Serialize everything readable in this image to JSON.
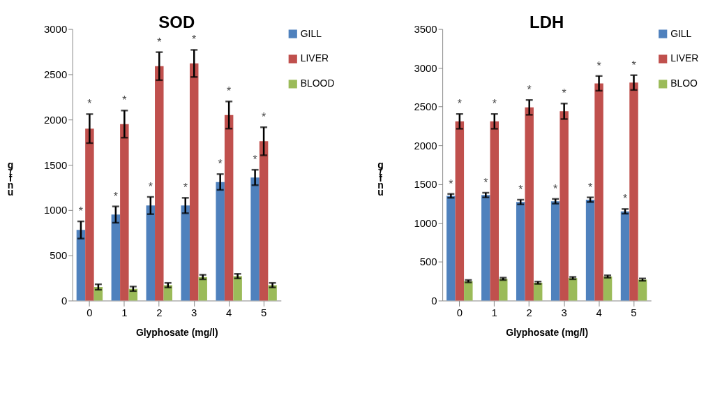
{
  "chart_data": [
    {
      "type": "bar",
      "title": "SOD",
      "xlabel": "Glyphosate (mg/l)",
      "ylabel": "g/fnu",
      "categories": [
        "0",
        "1",
        "2",
        "3",
        "4",
        "5"
      ],
      "series": [
        {
          "name": "GILL",
          "color": "#4f81bd",
          "values": [
            780,
            950,
            1050,
            1050,
            1310,
            1360
          ],
          "errors": [
            95,
            90,
            95,
            85,
            87,
            85
          ],
          "value_labels": [
            "*",
            "*",
            "*",
            "*",
            "*",
            "*"
          ]
        },
        {
          "name": "LIVER",
          "color": "#c0504d",
          "values": [
            1900,
            1950,
            2590,
            2620,
            2050,
            1760
          ],
          "errors": [
            160,
            150,
            155,
            150,
            150,
            155
          ],
          "value_labels": [
            "*",
            "*",
            "*",
            "*",
            "*",
            "*"
          ]
        },
        {
          "name": "BLOOD",
          "color": "#9bbb59",
          "values": [
            150,
            130,
            170,
            260,
            270,
            170
          ],
          "errors": [
            30,
            25,
            25,
            25,
            25,
            25
          ]
        }
      ],
      "ylim": [
        0,
        3000
      ],
      "yticks": [
        0,
        500,
        1000,
        1500,
        2000,
        2500,
        3000
      ],
      "grid": false,
      "legend": "right"
    },
    {
      "type": "bar",
      "title": "LDH",
      "xlabel": "Glyphosate (mg/l)",
      "ylabel": "g/fnu",
      "categories": [
        "0",
        "1",
        "2",
        "3",
        "4",
        "5"
      ],
      "series": [
        {
          "name": "GILL",
          "color": "#4f81bd",
          "values": [
            1350,
            1360,
            1270,
            1280,
            1300,
            1150
          ],
          "errors": [
            25,
            30,
            30,
            30,
            30,
            30
          ],
          "value_labels": [
            "*",
            "*",
            "*",
            "*",
            "*",
            "*"
          ]
        },
        {
          "name": "LIVER",
          "color": "#c0504d",
          "values": [
            2310,
            2310,
            2490,
            2440,
            2800,
            2810
          ],
          "errors": [
            95,
            95,
            95,
            100,
            95,
            95
          ],
          "value_labels": [
            "*",
            "*",
            "*",
            "*",
            "*",
            "*"
          ]
        },
        {
          "name": "BLOO",
          "color": "#9bbb59",
          "values": [
            250,
            280,
            230,
            290,
            310,
            270
          ],
          "errors": [
            15,
            15,
            15,
            15,
            15,
            15
          ]
        }
      ],
      "ylim": [
        0,
        3500
      ],
      "yticks": [
        0,
        500,
        1000,
        1500,
        2000,
        2500,
        3000,
        3500
      ],
      "grid": false,
      "legend": "right"
    }
  ]
}
